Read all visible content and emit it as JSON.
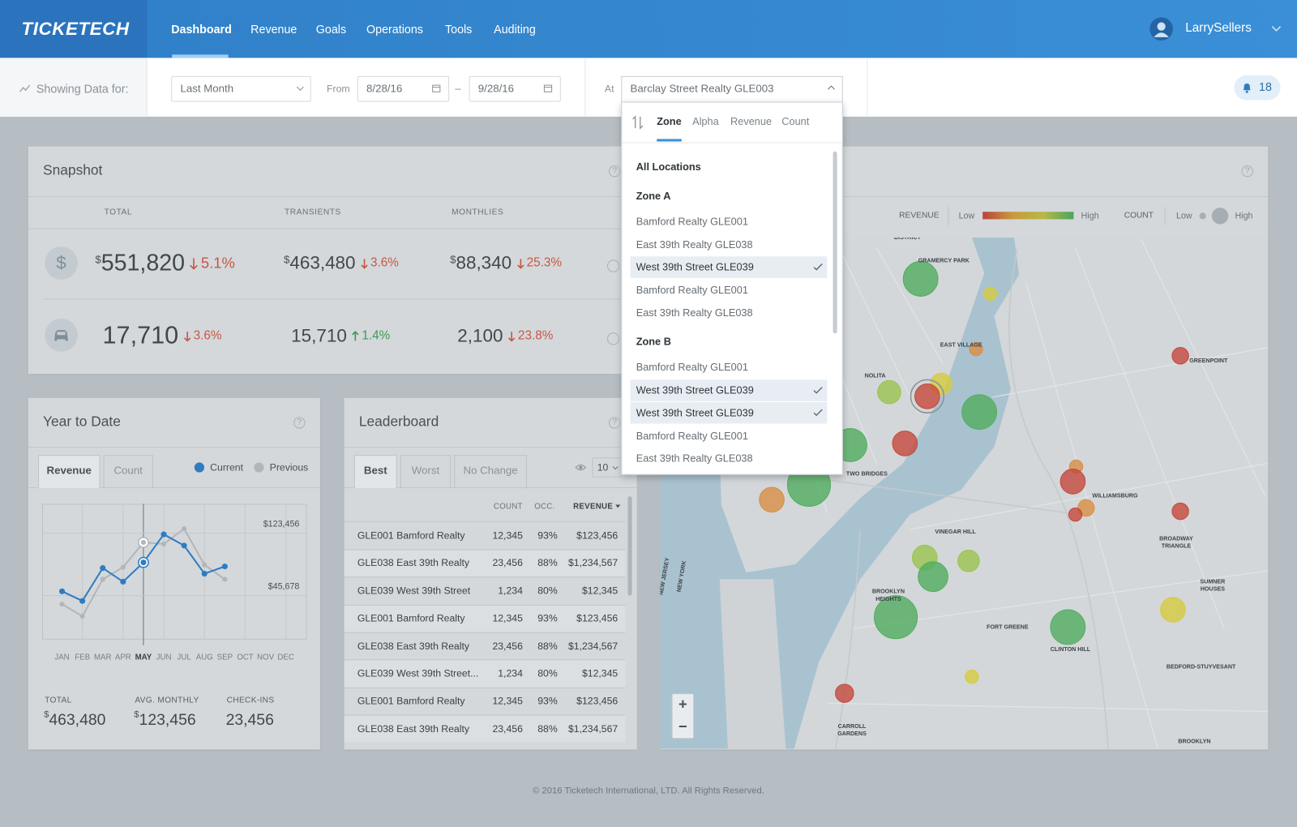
{
  "nav": {
    "logo": "TICKETECH",
    "items": [
      "Dashboard",
      "Revenue",
      "Goals",
      "Operations",
      "Tools",
      "Auditing"
    ],
    "active": "Dashboard",
    "user": "LarrySellers"
  },
  "help": "?",
  "filters": {
    "label": "Showing Data for:",
    "period": "Last Month",
    "from_label": "From",
    "from": "8/28/16",
    "dash": "–",
    "to": "9/28/16",
    "at_label": "At",
    "location": "Barclay Street Realty GLE003",
    "notifications": "18"
  },
  "dropdown": {
    "tabs": [
      "Zone",
      "Alpha",
      "Revenue",
      "Count"
    ],
    "active_tab": "Zone",
    "all": "All Locations",
    "groups": [
      {
        "name": "Zone A",
        "items": [
          {
            "label": "Bamford Realty GLE001",
            "selected": false
          },
          {
            "label": "East 39th Realty GLE038",
            "selected": false
          },
          {
            "label": "West 39th Street GLE039",
            "selected": true
          },
          {
            "label": "Bamford Realty GLE001",
            "selected": false
          },
          {
            "label": "East 39th Realty GLE038",
            "selected": false
          }
        ]
      },
      {
        "name": "Zone B",
        "items": [
          {
            "label": "Bamford Realty GLE001",
            "selected": false
          },
          {
            "label": "West 39th Street GLE039",
            "selected": true
          },
          {
            "label": "West 39th Street GLE039",
            "selected": true
          },
          {
            "label": "Bamford Realty GLE001",
            "selected": false
          },
          {
            "label": "East 39th Realty GLE038",
            "selected": false
          }
        ]
      }
    ]
  },
  "snapshot": {
    "title": "Snapshot",
    "columns": [
      "TOTAL",
      "TRANSIENTS",
      "MONTHLIES"
    ],
    "rows": [
      {
        "icon": "$",
        "cells": [
          {
            "prefix": "$",
            "value": "551,820",
            "change": "5.1%",
            "trend": "down"
          },
          {
            "prefix": "$",
            "value": "463,480",
            "change": "3.6%",
            "trend": "down"
          },
          {
            "prefix": "$",
            "value": "88,340",
            "change": "25.3%",
            "trend": "down"
          }
        ]
      },
      {
        "cells": [
          {
            "value": "17,710",
            "change": "3.6%",
            "trend": "down"
          },
          {
            "value": "15,710",
            "change": "1.4%",
            "trend": "up"
          },
          {
            "value": "2,100",
            "change": "23.8%",
            "trend": "down"
          }
        ]
      }
    ]
  },
  "ytd": {
    "title": "Year to Date",
    "tabs": [
      "Revenue",
      "Count"
    ],
    "active_tab": "Revenue",
    "stats": [
      {
        "label": "TOTAL",
        "prefix": "$",
        "value": "463,480"
      },
      {
        "label": "AVG. MONTHLY",
        "prefix": "$",
        "value": "123,456"
      },
      {
        "label": "CHECK-INS",
        "value": "23,456"
      }
    ]
  },
  "chart_data": {
    "type": "line",
    "categories": [
      "JAN",
      "FEB",
      "MAR",
      "APR",
      "MAY",
      "JUN",
      "JUL",
      "AUG",
      "SEP",
      "OCT",
      "NOV",
      "DEC"
    ],
    "selected": "MAY",
    "series": [
      {
        "name": "Current",
        "color": "#2f7cc1",
        "values": [
          51000,
          39000,
          80000,
          63000,
          87000,
          122000,
          108000,
          73000,
          82000,
          null,
          null,
          null
        ]
      },
      {
        "name": "Previous",
        "color": "#b3b6b9",
        "values": [
          35000,
          20000,
          66000,
          81000,
          112000,
          110000,
          129000,
          84000,
          66000,
          null,
          null,
          null
        ]
      }
    ],
    "ylim": [
      -8000,
      160000
    ],
    "yticks": [
      {
        "value": 45678,
        "label": "$45,678"
      },
      {
        "value": 123456,
        "label": "$123,456"
      }
    ],
    "grid": true
  },
  "leaderboard": {
    "title": "Leaderboard",
    "tabs": [
      "Best",
      "Worst",
      "No Change"
    ],
    "active_tab": "Best",
    "page_size": "10",
    "columns": [
      "COUNT",
      "OCC.",
      "REVENUE"
    ],
    "rows": [
      [
        "GLE001 Bamford Realty",
        "12,345",
        "93%",
        "$123,456"
      ],
      [
        "GLE038 East 39th Realty",
        "23,456",
        "88%",
        "$1,234,567"
      ],
      [
        "GLE039 West 39th Street",
        "1,234",
        "80%",
        "$12,345"
      ],
      [
        "GLE001 Bamford Realty",
        "12,345",
        "93%",
        "$123,456"
      ],
      [
        "GLE038 East 39th Realty",
        "23,456",
        "88%",
        "$1,234,567"
      ],
      [
        "GLE039 West 39th Street...",
        "1,234",
        "80%",
        "$12,345"
      ],
      [
        "GLE001 Bamford Realty",
        "12,345",
        "93%",
        "$123,456"
      ],
      [
        "GLE038 East 39th Realty",
        "23,456",
        "88%",
        "$1,234,567"
      ]
    ]
  },
  "map": {
    "legend": {
      "revenue": "REVENUE",
      "count": "COUNT",
      "low": "Low",
      "high": "High"
    },
    "zoom_in": "+",
    "zoom_out": "−",
    "labels": [
      [
        "DISTRICT"
      ],
      [
        "GRAMERCY PARK"
      ],
      [
        "EAST VILLAGE"
      ],
      [
        "GREENPOINT"
      ],
      [
        "NOLITA"
      ],
      [
        "TWO BRIDGES"
      ],
      [
        "WILLIAMSBURG"
      ],
      [
        "VINEGAR HILL"
      ],
      [
        "BROADWAY",
        "TRIANGLE"
      ],
      [
        "SUMNER",
        "HOUSES"
      ],
      [
        "BROOKLYN",
        "HEIGHTS"
      ],
      [
        "FORT GREENE"
      ],
      [
        "CLINTON HILL"
      ],
      [
        "BEDFORD-STUYVESANT"
      ],
      [
        "CARROLL",
        "GARDENS"
      ],
      [
        "BROOKLYN"
      ],
      [
        "NEW JERSEY"
      ],
      [
        "NEW YORK"
      ]
    ]
  },
  "footer": "© 2016 Ticketech International, LTD. All Rights Reserved."
}
